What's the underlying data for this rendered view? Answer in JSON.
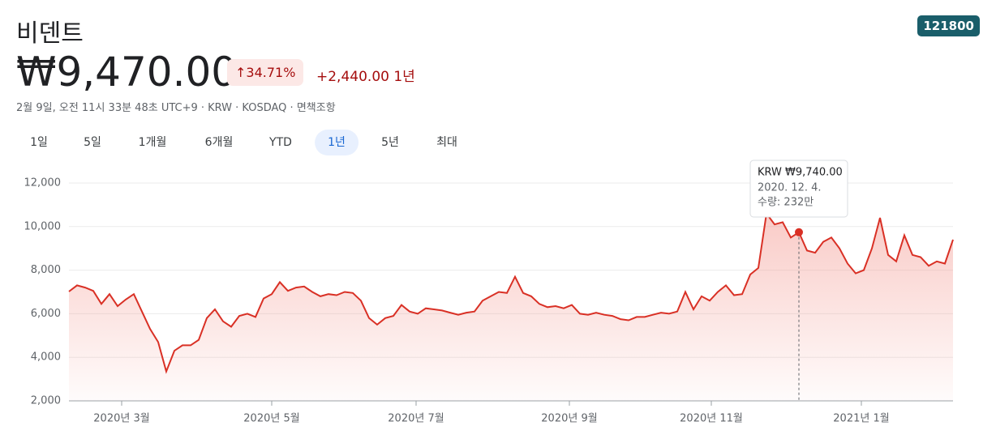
{
  "header": {
    "title": "비덴트",
    "ticker": "121800",
    "price": "₩9,470.00",
    "change_pct": "34.71%",
    "change_abs": "+2,440.00",
    "period": "1년",
    "meta": "2월 9일, 오전 11시 33분 48초 UTC+9 · KRW · KOSDAQ · ",
    "disclaimer": "면책조항"
  },
  "tabs": {
    "items": [
      "1일",
      "5일",
      "1개월",
      "6개월",
      "YTD",
      "1년",
      "5년",
      "최대"
    ],
    "active": "1년"
  },
  "chart_data": {
    "type": "line",
    "color": "#d93025",
    "values": [
      7020,
      7300,
      7200,
      7050,
      6450,
      6900,
      6350,
      6650,
      6900,
      6100,
      5300,
      4700,
      3350,
      4300,
      4550,
      4550,
      4800,
      5800,
      6200,
      5650,
      5400,
      5900,
      6000,
      5850,
      6700,
      6900,
      7450,
      7050,
      7200,
      7250,
      7000,
      6800,
      6900,
      6850,
      7000,
      6950,
      6600,
      5800,
      5500,
      5800,
      5900,
      6400,
      6100,
      6000,
      6250,
      6200,
      6150,
      6050,
      5950,
      6050,
      6100,
      6600,
      6800,
      7000,
      6950,
      7700,
      6950,
      6800,
      6450,
      6300,
      6350,
      6250,
      6400,
      6000,
      5950,
      6050,
      5950,
      5900,
      5750,
      5700,
      5850,
      5850,
      5950,
      6050,
      6000,
      6100,
      7000,
      6200,
      6800,
      6600,
      7000,
      7300,
      6850,
      6900,
      7800,
      8100,
      10600,
      10100,
      10200,
      9500,
      9740,
      8900,
      8800,
      9300,
      9500,
      9000,
      8300,
      7850,
      8000,
      9000,
      10400,
      8700,
      8400,
      9600,
      8700,
      8600,
      8200,
      8400,
      8300,
      9400
    ],
    "xlim": [
      0,
      109
    ],
    "xticks": [
      {
        "value": 6.5,
        "label": "2020년 3월"
      },
      {
        "value": 25,
        "label": "2020년 5월"
      },
      {
        "value": 42.8,
        "label": "2020년 7월"
      },
      {
        "value": 61.7,
        "label": "2020년 9월"
      },
      {
        "value": 79.2,
        "label": "2020년 11월"
      },
      {
        "value": 97.7,
        "label": "2021년 1월"
      }
    ],
    "ylim": [
      2000,
      12000
    ],
    "yticks": [
      {
        "value": 2000,
        "label": "2,000"
      },
      {
        "value": 4000,
        "label": "4,000"
      },
      {
        "value": 6000,
        "label": "6,000"
      },
      {
        "value": 8000,
        "label": "8,000"
      },
      {
        "value": 10000,
        "label": "10,000"
      },
      {
        "value": 12000,
        "label": "12,000"
      }
    ],
    "grid": true,
    "tooltip": {
      "value": 9740,
      "label": "KRW ₩9,740.00",
      "date": "2020. 12. 4.",
      "volume": "수량: 232만"
    }
  }
}
